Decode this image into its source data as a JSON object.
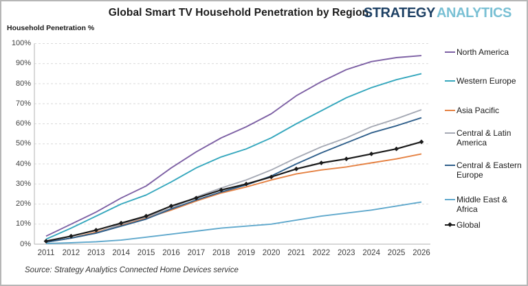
{
  "header": {
    "title": "Global Smart TV Household Penetration by Region",
    "logo": {
      "part1": "STRATEGY",
      "part2": "ANALYTICS",
      "part1_color": "#1d4064",
      "part2_color": "#79c0d4"
    }
  },
  "axis": {
    "y_title": "Household Penetration %"
  },
  "source": "Source: Strategy Analytics Connected Home Devices service",
  "chart_data": {
    "type": "line",
    "title": "Global Smart TV Household Penetration by Region",
    "ylabel": "Household Penetration %",
    "xlabel": "",
    "x": [
      2011,
      2012,
      2013,
      2014,
      2015,
      2016,
      2017,
      2018,
      2019,
      2020,
      2021,
      2022,
      2023,
      2024,
      2025,
      2026
    ],
    "ylim": [
      0,
      100
    ],
    "y_ticks": [
      "0%",
      "10%",
      "20%",
      "30%",
      "40%",
      "50%",
      "60%",
      "70%",
      "80%",
      "90%",
      "100%"
    ],
    "grid": "horizontal-dashed",
    "legend_position": "right",
    "series": [
      {
        "name": "North America",
        "color": "#7d60a4",
        "marker": "none",
        "values": [
          4,
          10,
          16,
          23,
          29,
          38,
          46,
          53,
          58.5,
          65,
          74,
          81,
          87,
          91,
          93,
          94
        ]
      },
      {
        "name": "Western Europe",
        "color": "#35a7bd",
        "marker": "none",
        "values": [
          2.5,
          8,
          14,
          20,
          24.5,
          31,
          38,
          43.5,
          47.5,
          53,
          60,
          66.5,
          73,
          78,
          82,
          85
        ]
      },
      {
        "name": "Asia Pacific",
        "color": "#e58142",
        "marker": "none",
        "values": [
          1,
          3,
          6,
          9.5,
          13,
          17,
          21.5,
          25.5,
          28.5,
          32,
          35,
          37,
          38.5,
          40.5,
          42.5,
          45
        ]
      },
      {
        "name": "Central & Latin America",
        "color": "#a5a9b4",
        "marker": "none",
        "values": [
          1,
          3,
          5.5,
          10,
          13.5,
          18,
          23.5,
          28,
          32,
          37,
          43,
          48.5,
          53,
          58.5,
          62.5,
          67
        ]
      },
      {
        "name": "Central & Eastern Europe",
        "color": "#2e5e8a",
        "marker": "none",
        "values": [
          1,
          3,
          5.5,
          9,
          12.5,
          17.5,
          22,
          26,
          29.5,
          34,
          40,
          45.5,
          50.5,
          55.5,
          59,
          63
        ]
      },
      {
        "name": "Middle East & Africa",
        "color": "#5fa8cc",
        "marker": "none",
        "values": [
          0.3,
          0.7,
          1.2,
          2,
          3.5,
          5,
          6.5,
          8,
          9,
          10,
          12,
          14,
          15.5,
          17,
          19,
          21
        ]
      },
      {
        "name": "Global",
        "color": "#1a1a1a",
        "marker": "diamond",
        "values": [
          1.5,
          4,
          7,
          10.5,
          14,
          19,
          23,
          27,
          30,
          33.5,
          37.5,
          40.5,
          42.5,
          45,
          47.5,
          51
        ]
      }
    ]
  }
}
